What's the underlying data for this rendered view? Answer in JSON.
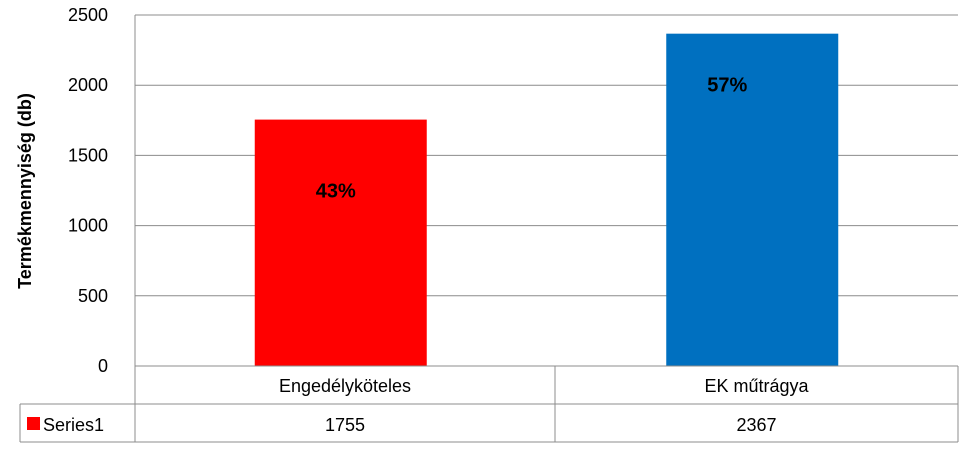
{
  "chart_data": {
    "type": "bar",
    "categories": [
      "Engedélyköteles",
      "EK műtrágya"
    ],
    "series": [
      {
        "name": "Series1",
        "values": [
          1755,
          2367
        ],
        "colors": [
          "#ff0000",
          "#0070c0"
        ],
        "data_labels": [
          "43%",
          "57%"
        ]
      }
    ],
    "ylabel": "Termékmennyiség  (db)",
    "ylim": [
      0,
      2500
    ],
    "yticks": [
      0,
      500,
      1000,
      1500,
      2000,
      2500
    ],
    "grid": true,
    "legend_placement": "data-table",
    "data_table": true,
    "legend_key_color": "#ff0000"
  }
}
